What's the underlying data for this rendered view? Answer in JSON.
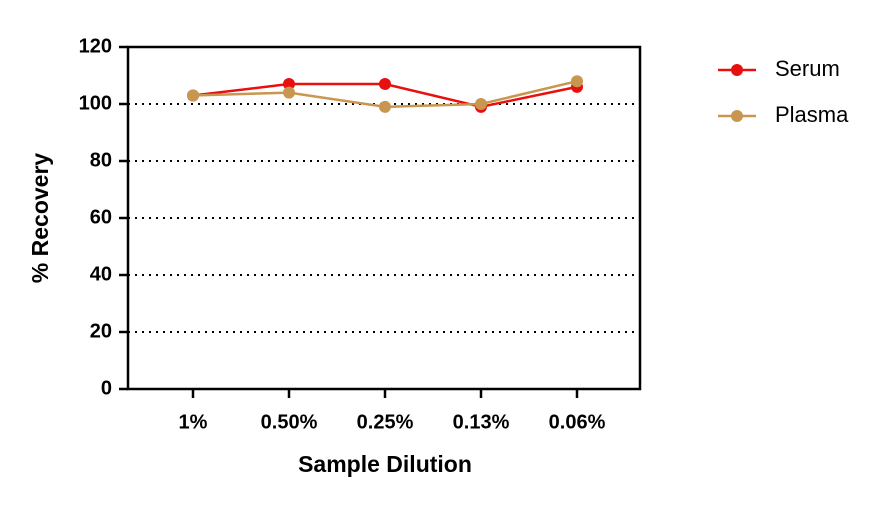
{
  "chart_data": {
    "type": "line",
    "x_label": "Sample Dilution",
    "y_label": "% Recovery",
    "categories": [
      "1%",
      "0.50%",
      "0.25%",
      "0.13%",
      "0.06%"
    ],
    "series": [
      {
        "name": "Serum",
        "color": "#e8100f",
        "values": [
          103,
          107,
          107,
          99,
          106
        ]
      },
      {
        "name": "Plasma",
        "color": "#c8964f",
        "values": [
          103,
          104,
          99,
          100,
          108
        ]
      }
    ],
    "ylim": [
      0,
      120
    ],
    "yticks": [
      0,
      20,
      40,
      60,
      80,
      100,
      120
    ],
    "grid": true,
    "legend": "right"
  }
}
